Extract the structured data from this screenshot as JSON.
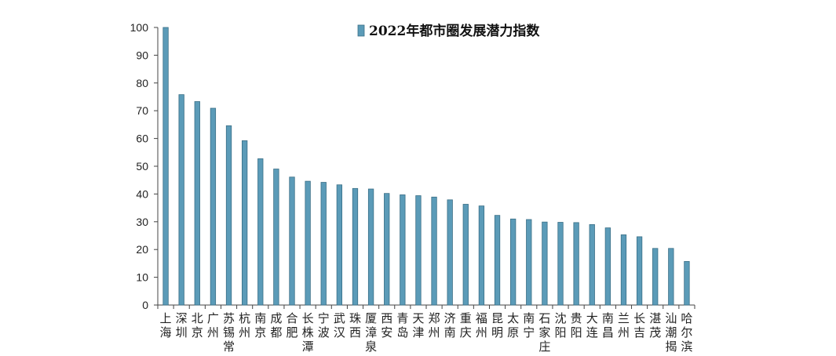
{
  "chart_data": {
    "type": "bar",
    "title": "",
    "xlabel": "",
    "ylabel": "",
    "ylim": [
      0,
      100
    ],
    "yticks": [
      0,
      10,
      20,
      30,
      40,
      50,
      60,
      70,
      80,
      90,
      100
    ],
    "grid": false,
    "legend_position": "top-center",
    "bar_color": "#5b9bb8",
    "bar_edge_color": "#3a6f86",
    "categories": [
      "上海",
      "深圳",
      "北京",
      "广州",
      "苏锡常",
      "杭州",
      "南京",
      "成都",
      "合肥",
      "长株潭",
      "宁波",
      "武汉",
      "珠西",
      "厦漳泉",
      "西安",
      "青岛",
      "天津",
      "郑州",
      "济南",
      "重庆",
      "福州",
      "昆明",
      "太原",
      "南宁",
      "石家庄",
      "沈阳",
      "贵阳",
      "大连",
      "南昌",
      "兰州",
      "长吉",
      "湛茂",
      "汕潮揭",
      "哈尔滨"
    ],
    "series": [
      {
        "name": "2022年都市圈发展潜力指数",
        "values": [
          100,
          75.8,
          73.3,
          70.9,
          64.6,
          59.2,
          52.7,
          49.0,
          46.1,
          44.6,
          44.2,
          43.3,
          42.0,
          41.8,
          40.2,
          39.7,
          39.4,
          38.9,
          37.9,
          36.3,
          35.7,
          32.3,
          31.0,
          30.8,
          29.9,
          29.8,
          29.7,
          29.0,
          27.8,
          25.3,
          24.6,
          20.4,
          20.4,
          15.7
        ]
      }
    ]
  }
}
